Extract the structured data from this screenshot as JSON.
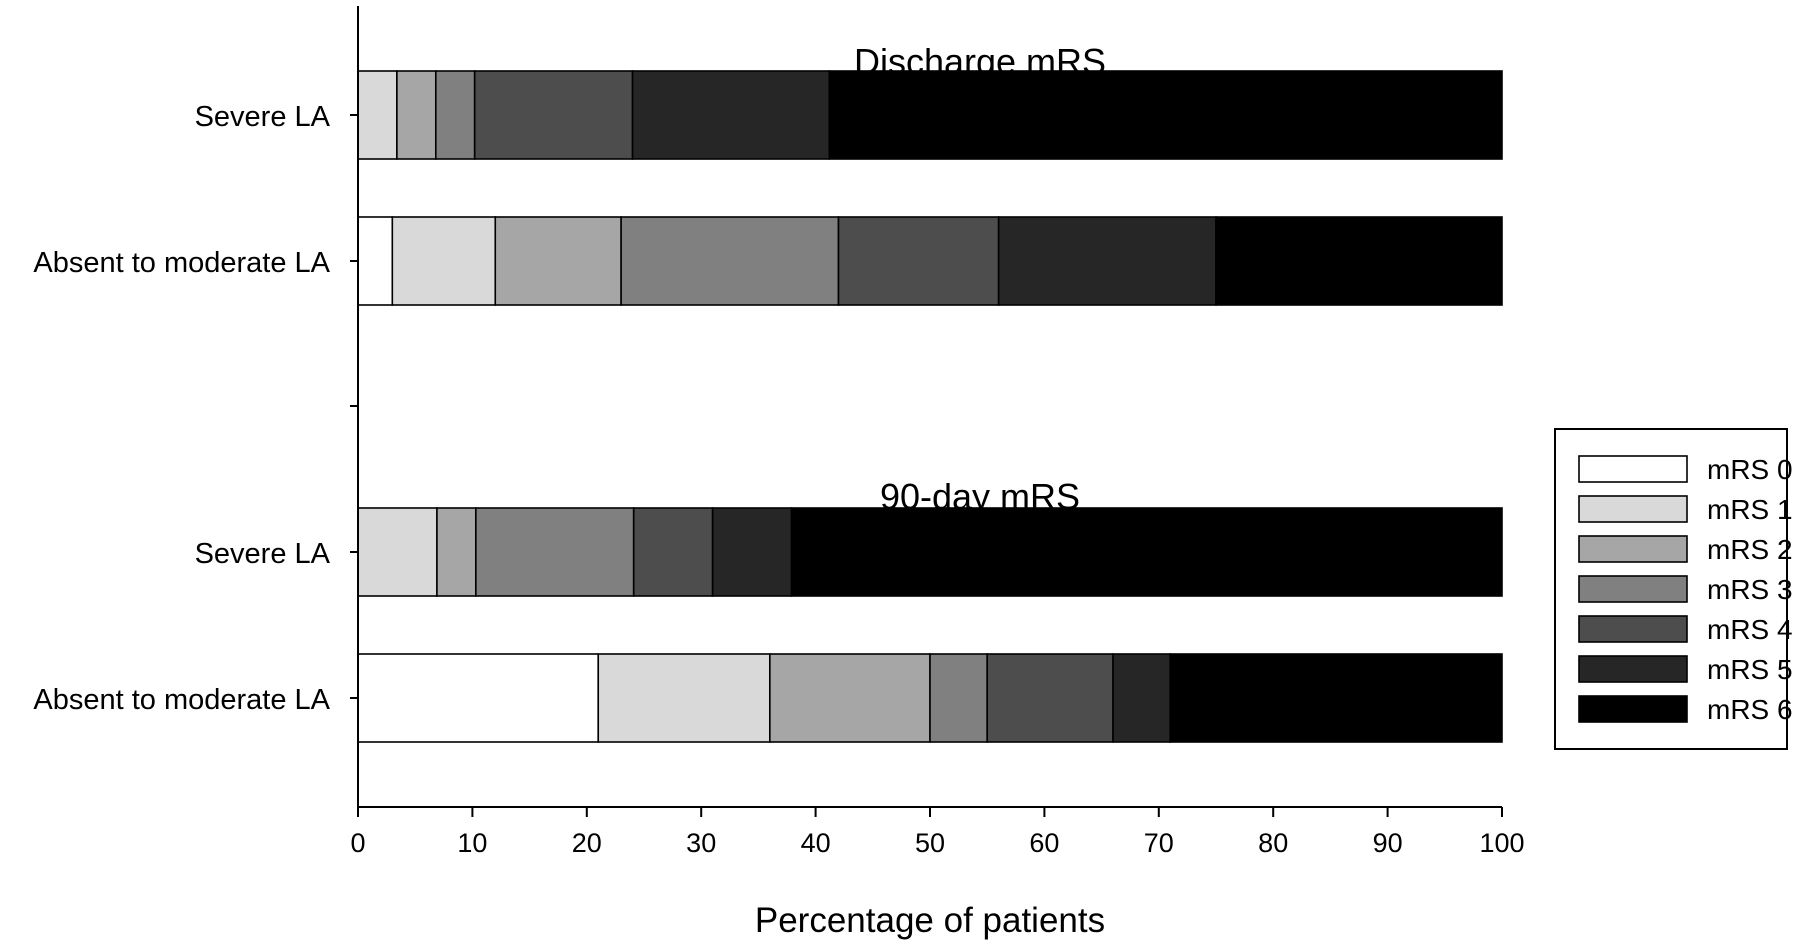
{
  "chart_data": {
    "type": "bar",
    "orientation": "horizontal",
    "stacked": true,
    "xlabel": "Percentage of patients",
    "xlim": [
      0,
      100
    ],
    "xticks": [
      0,
      10,
      20,
      30,
      40,
      50,
      60,
      70,
      80,
      90,
      100
    ],
    "legend_position": "right",
    "grid": false,
    "series": [
      {
        "name": "mRS 0",
        "color": "#ffffff"
      },
      {
        "name": "mRS 1",
        "color": "#d9d9d9"
      },
      {
        "name": "mRS 2",
        "color": "#a6a6a6"
      },
      {
        "name": "mRS 3",
        "color": "#808080"
      },
      {
        "name": "mRS 4",
        "color": "#4d4d4d"
      },
      {
        "name": "mRS 5",
        "color": "#262626"
      },
      {
        "name": "mRS 6",
        "color": "#000000"
      }
    ],
    "groups": [
      {
        "title": "Discharge mRS",
        "bars": [
          {
            "category": "Severe LA",
            "values": [
              0,
              3.4,
              3.4,
              3.4,
              13.8,
              17.2,
              58.8
            ]
          },
          {
            "category": "Absent to moderate LA",
            "values": [
              3,
              9,
              11,
              19,
              14,
              19,
              25
            ]
          }
        ]
      },
      {
        "title": "90-day mRS",
        "bars": [
          {
            "category": "Severe LA",
            "values": [
              0,
              6.9,
              3.4,
              13.8,
              6.9,
              6.9,
              62.1
            ]
          },
          {
            "category": "Absent to moderate LA",
            "values": [
              21,
              15,
              14,
              5,
              11,
              5,
              29
            ]
          }
        ]
      }
    ]
  }
}
